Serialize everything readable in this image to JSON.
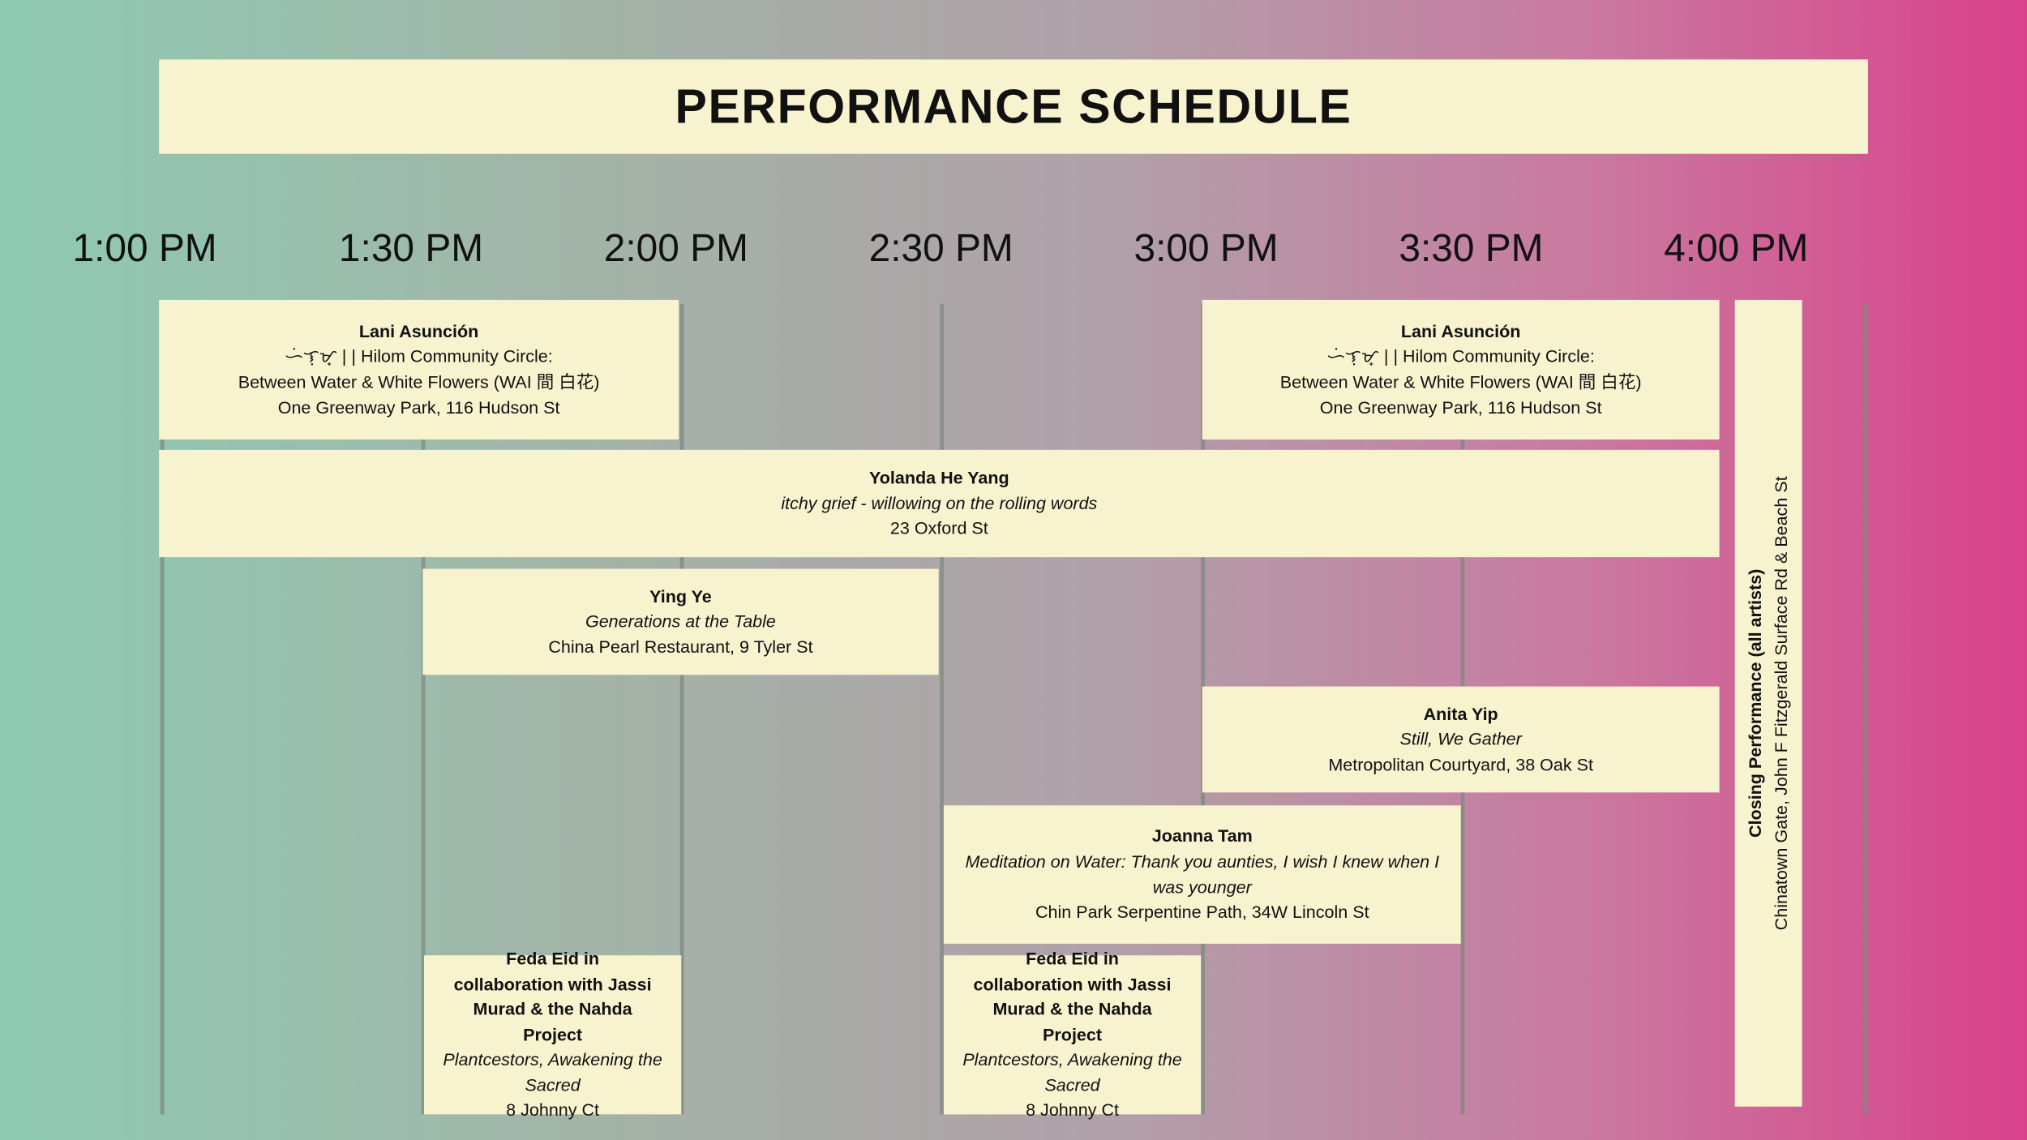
{
  "title": "PERFORMANCE SCHEDULE",
  "times": [
    "1:00 PM",
    "1:30 PM",
    "2:00 PM",
    "2:30 PM",
    "3:00 PM",
    "3:30 PM",
    "4:00 PM"
  ],
  "events": [
    {
      "name": "Lani Asunción",
      "work_lines": [
        "ᜑᜒᜎᜓᜋ᜔ | | Hilom Community Circle:",
        "Between Water & White Flowers (WAI 間 白花)"
      ],
      "venue": "One Greenway Park, 116 Hudson St"
    },
    {
      "name": "Lani Asunción",
      "work_lines": [
        "ᜑᜒᜎᜓᜋ᜔ | | Hilom Community Circle:",
        "Between Water & White Flowers (WAI 間 白花)"
      ],
      "venue": "One Greenway Park, 116 Hudson St"
    },
    {
      "name": "Yolanda He Yang",
      "work": "itchy grief - willowing on the rolling words",
      "venue": "23 Oxford St"
    },
    {
      "name": "Ying Ye",
      "work": "Generations at the Table",
      "venue": "China Pearl Restaurant, 9 Tyler St"
    },
    {
      "name": "Anita Yip",
      "work": "Still, We Gather",
      "venue": "Metropolitan Courtyard, 38 Oak St"
    },
    {
      "name": "Joanna Tam",
      "work": "Meditation on Water: Thank you aunties, I wish I knew when I was younger",
      "venue": "Chin Park Serpentine Path, 34W Lincoln St"
    },
    {
      "name": "Feda Eid in collaboration with Jassi Murad & the Nahda Project",
      "work": "Plantcestors, Awakening the Sacred",
      "venue": "8 Johnny Ct"
    },
    {
      "name": "Feda Eid in collaboration with Jassi Murad & the Nahda Project",
      "work": "Plantcestors, Awakening the Sacred",
      "venue": "8 Johnny Ct"
    }
  ],
  "closing": {
    "name": "Closing Performance (all artists)",
    "venue": "Chinatown Gate, John F Fitzgerald Surface Rd & Beach St"
  }
}
